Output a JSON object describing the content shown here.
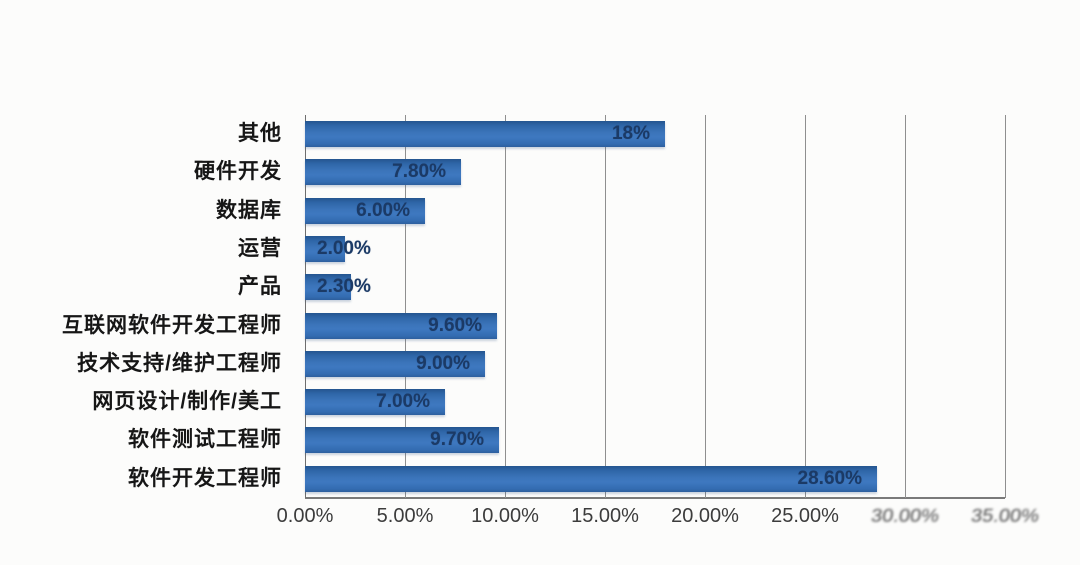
{
  "chart_data": {
    "type": "bar",
    "orientation": "horizontal",
    "title": "",
    "xlabel": "",
    "ylabel": "",
    "categories": [
      "其他",
      "硬件开发",
      "数据库",
      "运营",
      "产品",
      "互联网软件开发工程师",
      "技术支持/维护工程师",
      "网页设计/制作/美工",
      "软件测试工程师",
      "软件开发工程师"
    ],
    "values": [
      18,
      7.8,
      6.0,
      2.0,
      2.3,
      9.6,
      9.0,
      7.0,
      9.7,
      28.6
    ],
    "value_labels": [
      "18%",
      "7.80%",
      "6.00%",
      "2.00%",
      "2.30%",
      "9.60%",
      "9.00%",
      "7.00%",
      "9.70%",
      "28.60%"
    ],
    "x_ticks": [
      "0.00%",
      "5.00%",
      "10.00%",
      "15.00%",
      "20.00%",
      "25.00%",
      "30.00%",
      "35.00%"
    ],
    "xlim": [
      0,
      35
    ],
    "x_tick_step": 5,
    "grid": "vertical-only",
    "legend": "none",
    "colors": {
      "bar_fill": "#3a72b8",
      "bar_fill_dark": "#24558f",
      "value_label": "#1b3a66",
      "category_label": "#161616",
      "tick_label": "#3c3c3c",
      "gridline": "#8f8f8f",
      "background": "#fcfcfb"
    }
  }
}
